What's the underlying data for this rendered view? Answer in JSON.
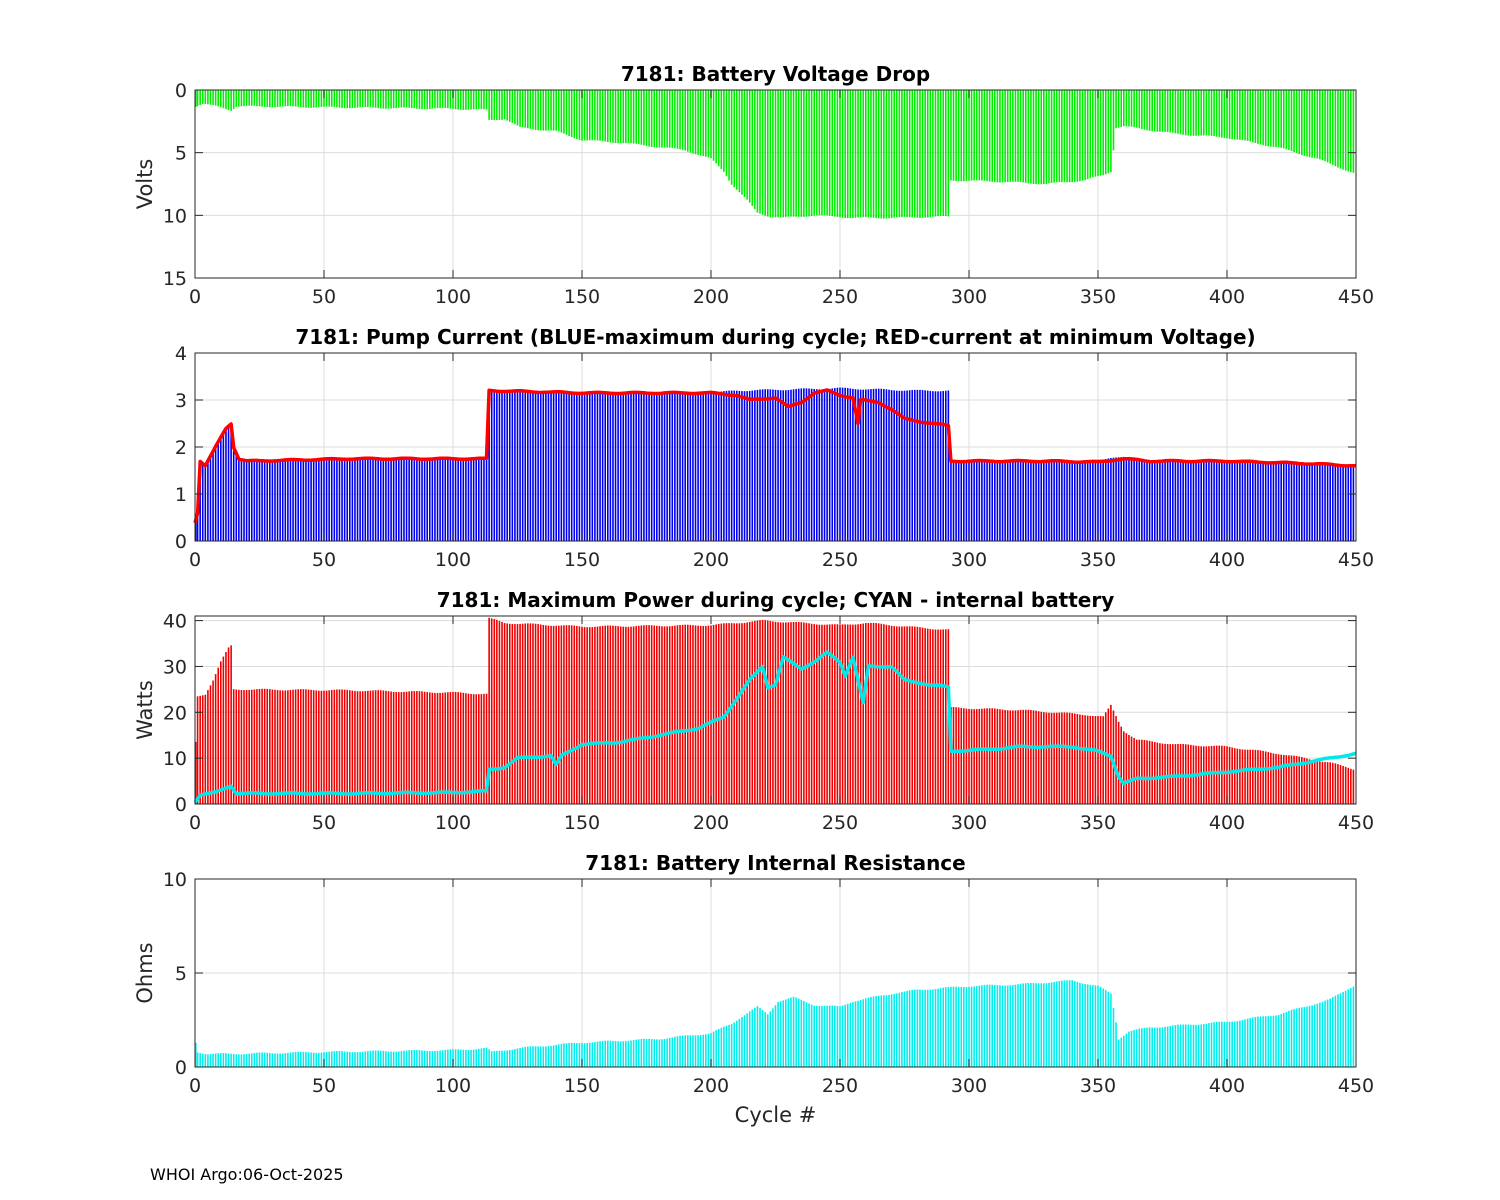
{
  "footer": "WHOI Argo:06-Oct-2025",
  "chart_data": [
    {
      "type": "bar",
      "title": "7181: Battery Voltage Drop",
      "ylabel": "Volts",
      "xlabel": "",
      "xlim": [
        0,
        450
      ],
      "ylim": [
        0,
        15
      ],
      "y_reversed": true,
      "xticks": [
        0,
        50,
        100,
        150,
        200,
        250,
        300,
        350,
        400,
        450
      ],
      "yticks": [
        0,
        5,
        10,
        15
      ],
      "grid": true,
      "bar_color": "#00ee00",
      "profile_knots": [
        [
          0,
          1.3
        ],
        [
          3,
          1.1
        ],
        [
          8,
          1.3
        ],
        [
          14,
          1.6
        ],
        [
          16,
          1.3
        ],
        [
          60,
          1.4
        ],
        [
          100,
          1.5
        ],
        [
          113,
          1.6
        ],
        [
          114,
          2.4
        ],
        [
          120,
          2.3
        ],
        [
          126,
          3.0
        ],
        [
          140,
          3.3
        ],
        [
          150,
          4.0
        ],
        [
          165,
          4.2
        ],
        [
          190,
          4.8
        ],
        [
          200,
          5.5
        ],
        [
          205,
          6.5
        ],
        [
          208,
          7.5
        ],
        [
          214,
          8.8
        ],
        [
          218,
          9.8
        ],
        [
          223,
          10.1
        ],
        [
          228,
          10.2
        ],
        [
          240,
          10.0
        ],
        [
          248,
          10.1
        ],
        [
          255,
          10.2
        ],
        [
          270,
          10.2
        ],
        [
          292,
          10.1
        ],
        [
          293,
          7.2
        ],
        [
          310,
          7.3
        ],
        [
          330,
          7.5
        ],
        [
          345,
          7.2
        ],
        [
          352,
          6.8
        ],
        [
          355,
          6.5
        ],
        [
          357,
          3.0
        ],
        [
          360,
          2.9
        ],
        [
          380,
          3.5
        ],
        [
          400,
          3.8
        ],
        [
          420,
          4.6
        ],
        [
          435,
          5.5
        ],
        [
          450,
          6.7
        ]
      ]
    },
    {
      "type": "bar",
      "title": "7181: Pump Current (BLUE-maximum during cycle; RED-current at minimum Voltage)",
      "ylabel": "",
      "xlabel": "",
      "xlim": [
        0,
        450
      ],
      "ylim": [
        0,
        4
      ],
      "xticks": [
        0,
        50,
        100,
        150,
        200,
        250,
        300,
        350,
        400,
        450
      ],
      "yticks": [
        0,
        1,
        2,
        3,
        4
      ],
      "grid": true,
      "series": [
        {
          "name": "maximum during cycle",
          "color": "#0000ee",
          "kind": "bar",
          "profile_knots": [
            [
              0,
              0.4
            ],
            [
              1,
              0.5
            ],
            [
              2,
              1.7
            ],
            [
              4,
              1.6
            ],
            [
              6,
              1.8
            ],
            [
              9,
              2.1
            ],
            [
              12,
              2.4
            ],
            [
              14,
              2.5
            ],
            [
              15,
              2.0
            ],
            [
              17,
              1.75
            ],
            [
              20,
              1.7
            ],
            [
              60,
              1.75
            ],
            [
              100,
              1.75
            ],
            [
              113,
              1.75
            ],
            [
              114,
              3.2
            ],
            [
              150,
              3.15
            ],
            [
              200,
              3.15
            ],
            [
              210,
              3.2
            ],
            [
              250,
              3.25
            ],
            [
              280,
              3.2
            ],
            [
              292,
              3.2
            ],
            [
              293,
              1.7
            ],
            [
              330,
              1.7
            ],
            [
              350,
              1.7
            ],
            [
              360,
              1.8
            ],
            [
              370,
              1.7
            ],
            [
              400,
              1.7
            ],
            [
              430,
              1.65
            ],
            [
              450,
              1.6
            ]
          ]
        },
        {
          "name": "current at minimum Voltage",
          "color": "#ff0000",
          "kind": "line",
          "profile_knots": [
            [
              0,
              0.4
            ],
            [
              1,
              0.6
            ],
            [
              2,
              1.7
            ],
            [
              4,
              1.6
            ],
            [
              6,
              1.8
            ],
            [
              9,
              2.1
            ],
            [
              12,
              2.4
            ],
            [
              14,
              2.5
            ],
            [
              15,
              2.0
            ],
            [
              17,
              1.75
            ],
            [
              20,
              1.7
            ],
            [
              60,
              1.75
            ],
            [
              100,
              1.75
            ],
            [
              113,
              1.75
            ],
            [
              114,
              3.2
            ],
            [
              150,
              3.15
            ],
            [
              200,
              3.15
            ],
            [
              210,
              3.1
            ],
            [
              215,
              3.0
            ],
            [
              225,
              3.05
            ],
            [
              230,
              2.85
            ],
            [
              235,
              2.95
            ],
            [
              240,
              3.15
            ],
            [
              245,
              3.2
            ],
            [
              250,
              3.1
            ],
            [
              255,
              3.05
            ],
            [
              257,
              2.5
            ],
            [
              258,
              3.0
            ],
            [
              265,
              2.95
            ],
            [
              270,
              2.8
            ],
            [
              275,
              2.6
            ],
            [
              280,
              2.55
            ],
            [
              292,
              2.45
            ],
            [
              293,
              1.7
            ],
            [
              330,
              1.7
            ],
            [
              350,
              1.68
            ],
            [
              360,
              1.75
            ],
            [
              370,
              1.7
            ],
            [
              400,
              1.7
            ],
            [
              430,
              1.65
            ],
            [
              450,
              1.6
            ]
          ]
        }
      ]
    },
    {
      "type": "bar",
      "title": "7181: Maximum Power during cycle; CYAN - internal battery",
      "ylabel": "Watts",
      "xlabel": "",
      "xlim": [
        0,
        450
      ],
      "ylim": [
        0,
        41
      ],
      "xticks": [
        0,
        50,
        100,
        150,
        200,
        250,
        300,
        350,
        400,
        450
      ],
      "yticks": [
        0,
        10,
        20,
        30,
        40
      ],
      "grid": true,
      "series": [
        {
          "name": "Maximum Power",
          "color": "#ee0000",
          "kind": "bar",
          "profile_knots": [
            [
              0,
              13.5
            ],
            [
              1,
              23.5
            ],
            [
              4,
              24
            ],
            [
              7,
              27
            ],
            [
              10,
              31
            ],
            [
              13,
              34
            ],
            [
              14,
              34.5
            ],
            [
              15,
              25
            ],
            [
              20,
              25
            ],
            [
              60,
              24.8
            ],
            [
              100,
              24.3
            ],
            [
              113,
              24
            ],
            [
              114,
              40.5
            ],
            [
              120,
              39.5
            ],
            [
              150,
              38.7
            ],
            [
              200,
              39
            ],
            [
              210,
              39.5
            ],
            [
              220,
              40
            ],
            [
              250,
              39
            ],
            [
              260,
              39.5
            ],
            [
              280,
              38.5
            ],
            [
              292,
              38
            ],
            [
              293,
              21
            ],
            [
              320,
              20.5
            ],
            [
              345,
              19.5
            ],
            [
              352,
              19
            ],
            [
              355,
              21.5
            ],
            [
              358,
              18
            ],
            [
              360,
              16
            ],
            [
              365,
              14
            ],
            [
              380,
              13
            ],
            [
              400,
              12.5
            ],
            [
              420,
              11
            ],
            [
              440,
              9
            ],
            [
              450,
              7.5
            ]
          ]
        },
        {
          "name": "internal battery",
          "color": "#00e8e8",
          "kind": "line",
          "profile_knots": [
            [
              0,
              0.5
            ],
            [
              2,
              2.0
            ],
            [
              8,
              2.5
            ],
            [
              14,
              4.0
            ],
            [
              16,
              2.3
            ],
            [
              60,
              2.3
            ],
            [
              100,
              2.5
            ],
            [
              113,
              2.8
            ],
            [
              114,
              7.5
            ],
            [
              120,
              8.0
            ],
            [
              125,
              10.0
            ],
            [
              138,
              10.5
            ],
            [
              140,
              8.5
            ],
            [
              142,
              10.5
            ],
            [
              150,
              13.0
            ],
            [
              165,
              13.5
            ],
            [
              180,
              15.0
            ],
            [
              195,
              16.5
            ],
            [
              205,
              19.0
            ],
            [
              210,
              23.0
            ],
            [
              215,
              27.0
            ],
            [
              220,
              30.0
            ],
            [
              222,
              25.5
            ],
            [
              225,
              26.0
            ],
            [
              228,
              32.0
            ],
            [
              235,
              29.5
            ],
            [
              240,
              31.0
            ],
            [
              245,
              33.0
            ],
            [
              250,
              31.0
            ],
            [
              252,
              28.0
            ],
            [
              255,
              32.0
            ],
            [
              259,
              22.0
            ],
            [
              261,
              30.0
            ],
            [
              270,
              30.0
            ],
            [
              275,
              27.0
            ],
            [
              285,
              26.0
            ],
            [
              292,
              25.5
            ],
            [
              293,
              11.5
            ],
            [
              310,
              12.0
            ],
            [
              320,
              12.5
            ],
            [
              340,
              12.5
            ],
            [
              350,
              11.5
            ],
            [
              355,
              10.5
            ],
            [
              358,
              6.0
            ],
            [
              360,
              4.5
            ],
            [
              365,
              5.5
            ],
            [
              380,
              6.0
            ],
            [
              400,
              7.0
            ],
            [
              420,
              8.0
            ],
            [
              440,
              10.0
            ],
            [
              450,
              11.0
            ]
          ]
        }
      ]
    },
    {
      "type": "bar",
      "title": "7181: Battery Internal Resistance",
      "ylabel": "Ohms",
      "xlabel": "Cycle #",
      "xlim": [
        0,
        450
      ],
      "ylim": [
        0,
        10
      ],
      "xticks": [
        0,
        50,
        100,
        150,
        200,
        250,
        300,
        350,
        400,
        450
      ],
      "yticks": [
        0,
        5,
        10
      ],
      "grid": true,
      "bar_color": "#00eeee",
      "profile_knots": [
        [
          0,
          1.3
        ],
        [
          1,
          0.8
        ],
        [
          5,
          0.7
        ],
        [
          14,
          0.7
        ],
        [
          50,
          0.8
        ],
        [
          100,
          0.9
        ],
        [
          113,
          1.0
        ],
        [
          115,
          0.8
        ],
        [
          125,
          1.0
        ],
        [
          150,
          1.3
        ],
        [
          180,
          1.5
        ],
        [
          200,
          1.8
        ],
        [
          208,
          2.3
        ],
        [
          212,
          2.7
        ],
        [
          218,
          3.2
        ],
        [
          222,
          2.8
        ],
        [
          226,
          3.5
        ],
        [
          232,
          3.7
        ],
        [
          240,
          3.3
        ],
        [
          250,
          3.2
        ],
        [
          255,
          3.5
        ],
        [
          270,
          3.9
        ],
        [
          280,
          4.1
        ],
        [
          300,
          4.3
        ],
        [
          320,
          4.4
        ],
        [
          340,
          4.6
        ],
        [
          350,
          4.3
        ],
        [
          355,
          3.9
        ],
        [
          357,
          2.4
        ],
        [
          358,
          1.5
        ],
        [
          362,
          1.9
        ],
        [
          370,
          2.1
        ],
        [
          400,
          2.4
        ],
        [
          420,
          2.8
        ],
        [
          440,
          3.6
        ],
        [
          450,
          4.4
        ]
      ]
    }
  ]
}
